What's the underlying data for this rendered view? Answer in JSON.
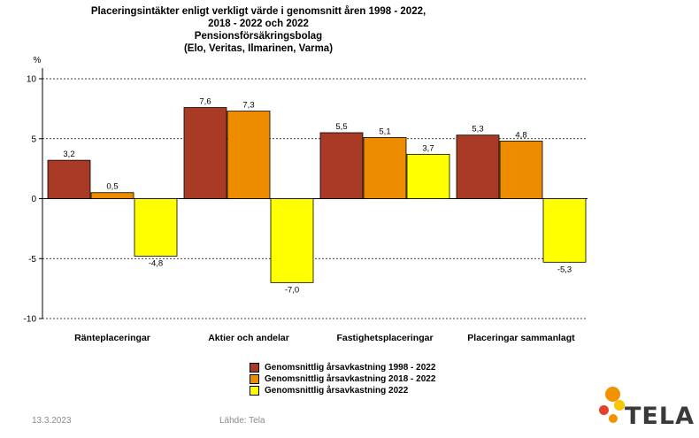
{
  "title_lines": [
    "Placeringsintäkter enligt verkligt värde i genomsnitt åren 1998 - 2022,",
    "2018 - 2022 och 2022",
    "Pensionsförsäkringsbolag",
    "(Elo, Veritas, Ilmarinen, Varma)"
  ],
  "footer": {
    "date": "13.3.2023",
    "source": "Lähde: Tela"
  },
  "logo": {
    "text": "TELA"
  },
  "colors": {
    "series": [
      "#a83a26",
      "#ee8c00",
      "#ffff00"
    ],
    "logo_orange": "#f39200",
    "logo_yellow": "#f7c600",
    "logo_red": "#e5412a"
  },
  "chart_data": {
    "type": "bar",
    "unit_label": "%",
    "categories": [
      "Ränteplaceringar",
      "Aktier och andelar",
      "Fastighetsplaceringar",
      "Placeringar sammanlagt"
    ],
    "series": [
      {
        "name": "Genomsnittlig årsavkastning 1998 - 2022",
        "values": [
          3.2,
          7.6,
          5.5,
          5.3
        ],
        "labels": [
          "3,2",
          "7,6",
          "5,5",
          "5,3"
        ]
      },
      {
        "name": "Genomsnittlig årsavkastning 2018 - 2022",
        "values": [
          0.5,
          7.3,
          5.1,
          4.8
        ],
        "labels": [
          "0,5",
          "7,3",
          "5,1",
          "4,8"
        ]
      },
      {
        "name": "Genomsnittlig årsavkastning 2022",
        "values": [
          -4.8,
          -7.0,
          3.7,
          -5.3
        ],
        "labels": [
          "-4,8",
          "-7,0",
          "3,7",
          "-5,3"
        ]
      }
    ],
    "yticks": [
      10,
      5,
      0,
      -5,
      -10
    ],
    "ytick_labels": [
      "10",
      "5",
      "0",
      "-5",
      "-10"
    ],
    "ylim": [
      -10,
      10
    ],
    "grid": true,
    "legend_position": "bottom"
  }
}
